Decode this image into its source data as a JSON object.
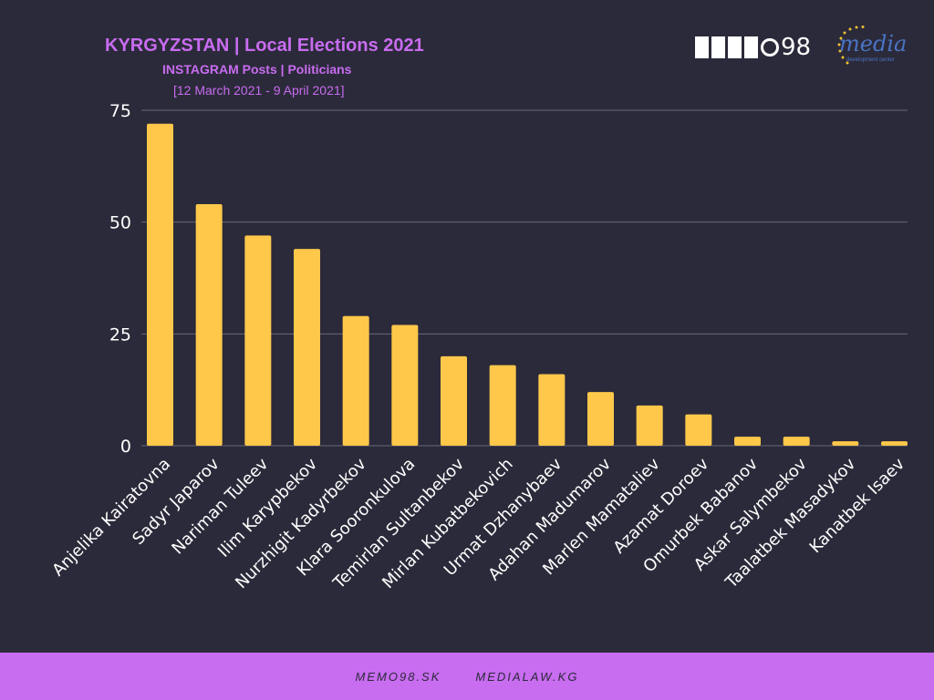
{
  "header": {
    "title": "KYRGYZSTAN | Local Elections 2021",
    "subtitle": "INSTAGRAM Posts  | Politicians",
    "date_range": "[12 March 2021 - 9 April 2021]"
  },
  "logos": {
    "memo_text": "98",
    "media_wordmark": "media",
    "media_tagline": "development center"
  },
  "footer": {
    "link1": "MEMO98.SK",
    "link2": "MEDIALAW.KG"
  },
  "colors": {
    "background": "#2b2a3a",
    "bar": "#ffc84a",
    "accent": "#c86cf0",
    "grid": "#6a6878",
    "text": "#ffffff"
  },
  "chart_data": {
    "type": "bar",
    "title": "KYRGYZSTAN | Local Elections 2021",
    "subtitle": "INSTAGRAM Posts  | Politicians",
    "xlabel": "",
    "ylabel": "",
    "ylim": [
      0,
      75
    ],
    "yticks": [
      0,
      25,
      50,
      75
    ],
    "grid": true,
    "categories": [
      "Anjelika Kairatovna",
      "Sadyr Japarov",
      "Nariman Tuleev",
      "Ilim Karypbekov",
      "Nurzhigit Kadyrbekov",
      "Klara Sooronkulova",
      "Temirlan Sultanbekov",
      "Mirlan Kubatbekovich",
      "Urmat Dzhanybaev",
      "Adahan Madumarov",
      "Marlen Mamataliev",
      "Azamat Doroev",
      "Omurbek Babanov",
      "Askar Salymbekov",
      "Taalatbek Masadykov",
      "Kanatbek Isaev"
    ],
    "values": [
      72,
      54,
      47,
      44,
      29,
      27,
      20,
      18,
      16,
      12,
      9,
      7,
      2,
      2,
      1,
      1
    ]
  }
}
